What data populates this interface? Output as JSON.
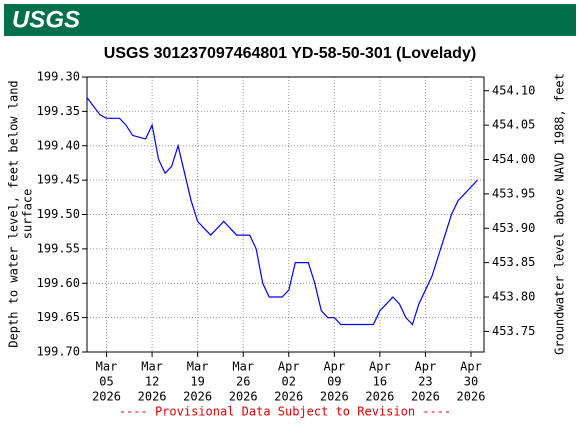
{
  "header": {
    "logo": "USGS"
  },
  "chart_data": {
    "type": "line",
    "title": "USGS 301237097464801 YD-58-50-301 (Lovelady)",
    "ylabel": [
      "Depth to water level, feet below land",
      "surface"
    ],
    "y2label": "Groundwater level above NAVD 1988, feet",
    "footnote": "---- Provisional Data Subject to Revision ----",
    "x": [
      "2026-03-02",
      "2026-03-04",
      "2026-03-05",
      "2026-03-07",
      "2026-03-08",
      "2026-03-09",
      "2026-03-11",
      "2026-03-12",
      "2026-03-13",
      "2026-03-14",
      "2026-03-15",
      "2026-03-16",
      "2026-03-17",
      "2026-03-18",
      "2026-03-19",
      "2026-03-20",
      "2026-03-21",
      "2026-03-22",
      "2026-03-23",
      "2026-03-24",
      "2026-03-25",
      "2026-03-26",
      "2026-03-27",
      "2026-03-28",
      "2026-03-29",
      "2026-03-30",
      "2026-03-31",
      "2026-04-01",
      "2026-04-02",
      "2026-04-03",
      "2026-04-04",
      "2026-04-05",
      "2026-04-06",
      "2026-04-07",
      "2026-04-08",
      "2026-04-09",
      "2026-04-10",
      "2026-04-11",
      "2026-04-12",
      "2026-04-13",
      "2026-04-14",
      "2026-04-15",
      "2026-04-16",
      "2026-04-17",
      "2026-04-18",
      "2026-04-19",
      "2026-04-20",
      "2026-04-21",
      "2026-04-22",
      "2026-04-23",
      "2026-04-24",
      "2026-04-25",
      "2026-04-26",
      "2026-04-27",
      "2026-04-28",
      "2026-04-29",
      "2026-04-30",
      "2026-05-01"
    ],
    "series": [
      {
        "name": "Depth to water level",
        "color": "#0000ff",
        "values": [
          199.33,
          199.355,
          199.36,
          199.36,
          199.37,
          199.385,
          199.39,
          199.37,
          199.42,
          199.44,
          199.43,
          199.4,
          199.44,
          199.48,
          199.51,
          199.52,
          199.53,
          199.52,
          199.51,
          199.52,
          199.53,
          199.53,
          199.53,
          199.55,
          199.6,
          199.62,
          199.62,
          199.62,
          199.61,
          199.57,
          199.57,
          199.57,
          199.6,
          199.64,
          199.65,
          199.65,
          199.66,
          199.66,
          199.66,
          199.66,
          199.66,
          199.66,
          199.64,
          199.63,
          199.62,
          199.63,
          199.65,
          199.66,
          199.63,
          199.61,
          199.59,
          199.56,
          199.53,
          199.5,
          199.48,
          199.47,
          199.46,
          199.45
        ]
      }
    ],
    "xlim": [
      "2026-03-02",
      "2026-05-02"
    ],
    "xticks": [
      {
        "value": "2026-03-05",
        "label": [
          "Mar",
          "05",
          "2026"
        ]
      },
      {
        "value": "2026-03-12",
        "label": [
          "Mar",
          "12",
          "2026"
        ]
      },
      {
        "value": "2026-03-19",
        "label": [
          "Mar",
          "19",
          "2026"
        ]
      },
      {
        "value": "2026-03-26",
        "label": [
          "Mar",
          "26",
          "2026"
        ]
      },
      {
        "value": "2026-04-02",
        "label": [
          "Apr",
          "02",
          "2026"
        ]
      },
      {
        "value": "2026-04-09",
        "label": [
          "Apr",
          "09",
          "2026"
        ]
      },
      {
        "value": "2026-04-16",
        "label": [
          "Apr",
          "16",
          "2026"
        ]
      },
      {
        "value": "2026-04-23",
        "label": [
          "Apr",
          "23",
          "2026"
        ]
      },
      {
        "value": "2026-04-30",
        "label": [
          "Apr",
          "30",
          "2026"
        ]
      }
    ],
    "ylim": [
      199.3,
      199.7
    ],
    "y_inverted": true,
    "yticks": [
      {
        "value": 199.3,
        "label": "199.30"
      },
      {
        "value": 199.35,
        "label": "199.35"
      },
      {
        "value": 199.4,
        "label": "199.40"
      },
      {
        "value": 199.45,
        "label": "199.45"
      },
      {
        "value": 199.5,
        "label": "199.50"
      },
      {
        "value": 199.55,
        "label": "199.55"
      },
      {
        "value": 199.6,
        "label": "199.60"
      },
      {
        "value": 199.65,
        "label": "199.65"
      },
      {
        "value": 199.7,
        "label": "199.70"
      }
    ],
    "y2lim": [
      453.72,
      454.12
    ],
    "y2ticks": [
      {
        "value": 454.1,
        "label": "454.10"
      },
      {
        "value": 454.05,
        "label": "454.05"
      },
      {
        "value": 454.0,
        "label": "454.00"
      },
      {
        "value": 453.95,
        "label": "453.95"
      },
      {
        "value": 453.9,
        "label": "453.90"
      },
      {
        "value": 453.85,
        "label": "453.85"
      },
      {
        "value": 453.8,
        "label": "453.80"
      },
      {
        "value": 453.75,
        "label": "453.75"
      }
    ],
    "grid": true
  }
}
